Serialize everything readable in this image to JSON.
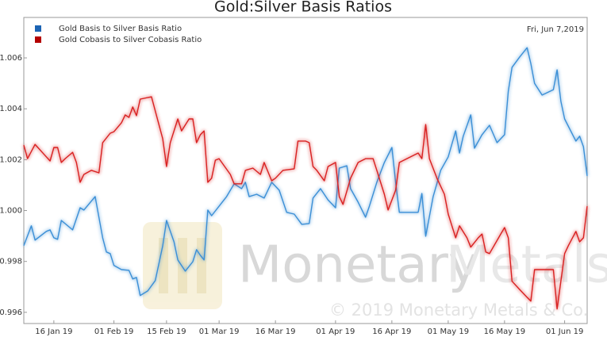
{
  "chart_data": {
    "type": "line",
    "title": "Gold:Silver Basis Ratios",
    "date_label": "Fri, Jun 7,2019",
    "watermark": {
      "word_1": "Monetary",
      "word_2": "Metals",
      "copyright": "© 2019 Monetary Metals & Co."
    },
    "legend": "top-left",
    "grid": false,
    "xlim": [
      "2019-01-08",
      "2019-06-07"
    ],
    "xticks": [
      {
        "value": "2019-01-16",
        "label": "16 Jan 19"
      },
      {
        "value": "2019-02-01",
        "label": "01 Feb 19"
      },
      {
        "value": "2019-02-15",
        "label": "15 Feb 19"
      },
      {
        "value": "2019-03-01",
        "label": "01 Mar 19"
      },
      {
        "value": "2019-03-16",
        "label": "16 Mar 19"
      },
      {
        "value": "2019-04-01",
        "label": "01 Apr 19"
      },
      {
        "value": "2019-04-16",
        "label": "16 Apr 19"
      },
      {
        "value": "2019-05-01",
        "label": "01 May 19"
      },
      {
        "value": "2019-05-16",
        "label": "16 May 19"
      },
      {
        "value": "2019-06-01",
        "label": "01 Jun 19"
      }
    ],
    "ylim": [
      0.99556,
      1.00759
    ],
    "yticks": [
      0.996,
      0.998,
      {
        "value": 1,
        "label": "1.000"
      },
      1.002,
      1.004,
      1.006
    ],
    "series": [
      {
        "name": "Gold Basis to Silver Basis Ratio",
        "color": "#3b8fd6",
        "legend_color": "#1c64b4",
        "x": [
          "2019-01-08",
          "2019-01-10",
          "2019-01-11",
          "2019-01-14",
          "2019-01-15",
          "2019-01-16",
          "2019-01-17",
          "2019-01-18",
          "2019-01-21",
          "2019-01-23",
          "2019-01-24",
          "2019-01-27",
          "2019-01-29",
          "2019-01-30",
          "2019-01-31",
          "2019-02-01",
          "2019-02-03",
          "2019-02-05",
          "2019-02-06",
          "2019-02-07",
          "2019-02-08",
          "2019-02-10",
          "2019-02-12",
          "2019-02-14",
          "2019-02-15",
          "2019-02-17",
          "2019-02-18",
          "2019-02-20",
          "2019-02-22",
          "2019-02-23",
          "2019-02-24",
          "2019-02-25",
          "2019-02-26",
          "2019-02-27",
          "2019-03-03",
          "2019-03-05",
          "2019-03-07",
          "2019-03-08",
          "2019-03-09",
          "2019-03-11",
          "2019-03-13",
          "2019-03-15",
          "2019-03-17",
          "2019-03-19",
          "2019-03-21",
          "2019-03-23",
          "2019-03-25",
          "2019-03-26",
          "2019-03-28",
          "2019-03-30",
          "2019-04-01",
          "2019-04-02",
          "2019-04-04",
          "2019-04-05",
          "2019-04-07",
          "2019-04-09",
          "2019-04-10",
          "2019-04-12",
          "2019-04-14",
          "2019-04-16",
          "2019-04-17",
          "2019-04-18",
          "2019-04-23",
          "2019-04-24",
          "2019-04-25",
          "2019-04-27",
          "2019-04-29",
          "2019-05-01",
          "2019-05-03",
          "2019-05-04",
          "2019-05-05",
          "2019-05-07",
          "2019-05-08",
          "2019-05-10",
          "2019-05-12",
          "2019-05-14",
          "2019-05-16",
          "2019-05-17",
          "2019-05-18",
          "2019-05-20",
          "2019-05-22",
          "2019-05-23",
          "2019-05-24",
          "2019-05-26",
          "2019-05-29",
          "2019-05-30",
          "2019-05-31",
          "2019-06-01",
          "2019-06-04",
          "2019-06-05",
          "2019-06-06",
          "2019-06-07"
        ],
        "values": [
          0.99862,
          0.9994,
          0.99884,
          0.99918,
          0.99924,
          0.99893,
          0.99887,
          0.99961,
          0.99924,
          1.00011,
          1.00002,
          1.00055,
          0.99893,
          0.99837,
          0.99831,
          0.99784,
          0.99768,
          0.99765,
          0.99731,
          0.99737,
          0.99666,
          0.99684,
          0.99725,
          0.99862,
          0.99961,
          0.99877,
          0.99806,
          0.99762,
          0.99799,
          0.99846,
          0.99824,
          0.99806,
          1.00002,
          0.9998,
          1.00055,
          1.00105,
          1.00086,
          1.00111,
          1.00055,
          1.00064,
          1.00049,
          1.00111,
          1.0008,
          0.99993,
          0.99986,
          0.99946,
          0.99949,
          1.00049,
          1.00086,
          1.00042,
          1.00011,
          1.00167,
          1.00176,
          1.00086,
          1.00033,
          0.99974,
          1.00017,
          1.00111,
          1.00189,
          1.00248,
          1.00111,
          0.99993,
          0.99993,
          1.00067,
          0.99899,
          1.00055,
          1.00158,
          1.00211,
          1.00313,
          1.00226,
          1.00292,
          1.00376,
          1.00245,
          1.00298,
          1.00335,
          1.00267,
          1.00298,
          1.00469,
          1.00563,
          1.00603,
          1.0064,
          1.00578,
          1.005,
          1.00454,
          1.00475,
          1.00553,
          1.00429,
          1.0036,
          1.00273,
          1.00292,
          1.00251,
          1.00136
        ]
      },
      {
        "name": "Gold Cobasis to Silver Cobasis Ratio",
        "color": "#d92020",
        "legend_color": "#b40000",
        "x": [
          "2019-01-08",
          "2019-01-09",
          "2019-01-11",
          "2019-01-14",
          "2019-01-15",
          "2019-01-16",
          "2019-01-17",
          "2019-01-18",
          "2019-01-19",
          "2019-01-21",
          "2019-01-22",
          "2019-01-23",
          "2019-01-24",
          "2019-01-26",
          "2019-01-28",
          "2019-01-29",
          "2019-01-31",
          "2019-02-01",
          "2019-02-03",
          "2019-02-04",
          "2019-02-05",
          "2019-02-06",
          "2019-02-07",
          "2019-02-08",
          "2019-02-11",
          "2019-02-14",
          "2019-02-15",
          "2019-02-16",
          "2019-02-18",
          "2019-02-19",
          "2019-02-21",
          "2019-02-22",
          "2019-02-23",
          "2019-02-24",
          "2019-02-25",
          "2019-02-26",
          "2019-02-27",
          "2019-02-28",
          "2019-03-01",
          "2019-03-04",
          "2019-03-05",
          "2019-03-07",
          "2019-03-08",
          "2019-03-10",
          "2019-03-12",
          "2019-03-13",
          "2019-03-15",
          "2019-03-16",
          "2019-03-18",
          "2019-03-21",
          "2019-03-22",
          "2019-03-24",
          "2019-03-25",
          "2019-03-26",
          "2019-03-27",
          "2019-03-29",
          "2019-03-30",
          "2019-04-01",
          "2019-04-02",
          "2019-04-03",
          "2019-04-05",
          "2019-04-07",
          "2019-04-09",
          "2019-04-11",
          "2019-04-12",
          "2019-04-14",
          "2019-04-15",
          "2019-04-17",
          "2019-04-18",
          "2019-04-23",
          "2019-04-24",
          "2019-04-25",
          "2019-04-26",
          "2019-04-28",
          "2019-04-30",
          "2019-05-01",
          "2019-05-03",
          "2019-05-04",
          "2019-05-06",
          "2019-05-07",
          "2019-05-09",
          "2019-05-10",
          "2019-05-11",
          "2019-05-12",
          "2019-05-15",
          "2019-05-16",
          "2019-05-17",
          "2019-05-18",
          "2019-05-20",
          "2019-05-22",
          "2019-05-23",
          "2019-05-24",
          "2019-05-29",
          "2019-05-30",
          "2019-06-01",
          "2019-06-02",
          "2019-06-04",
          "2019-06-05",
          "2019-06-06",
          "2019-06-07"
        ],
        "values": [
          1.00257,
          1.00204,
          1.0026,
          1.00211,
          1.00195,
          1.00248,
          1.00248,
          1.00189,
          1.00204,
          1.00229,
          1.00189,
          1.00111,
          1.00142,
          1.00158,
          1.00148,
          1.00267,
          1.00304,
          1.0031,
          1.00345,
          1.00376,
          1.00366,
          1.00407,
          1.00373,
          1.00438,
          1.00447,
          1.00282,
          1.00173,
          1.00267,
          1.0036,
          1.00313,
          1.0036,
          1.0036,
          1.00267,
          1.00298,
          1.00313,
          1.00111,
          1.00127,
          1.00198,
          1.00204,
          1.00142,
          1.00105,
          1.00105,
          1.00158,
          1.00167,
          1.00142,
          1.00189,
          1.00117,
          1.00127,
          1.00158,
          1.00164,
          1.00273,
          1.00273,
          1.00267,
          1.00173,
          1.00158,
          1.00117,
          1.00173,
          1.00189,
          1.00055,
          1.00024,
          1.00127,
          1.00189,
          1.00204,
          1.00204,
          1.00158,
          1.00064,
          1.00002,
          1.0008,
          1.00189,
          1.00226,
          1.00204,
          1.00338,
          1.00204,
          1.00127,
          1.00064,
          0.99986,
          0.99893,
          0.9994,
          0.99893,
          0.99856,
          0.99893,
          0.99908,
          0.99837,
          0.99831,
          0.99908,
          0.99933,
          0.99893,
          0.99722,
          0.9969,
          0.99659,
          0.99644,
          0.99768,
          0.99768,
          0.99613,
          0.99831,
          0.99862,
          0.99918,
          0.99877,
          0.99893,
          1.00017
        ]
      }
    ]
  }
}
